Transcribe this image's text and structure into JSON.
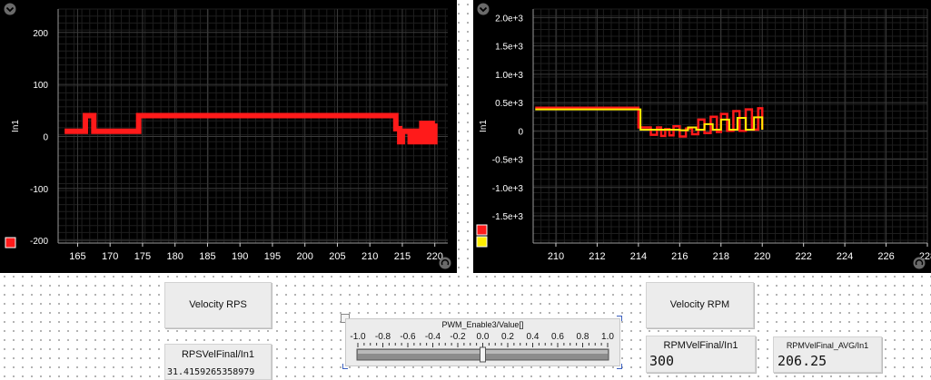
{
  "colors": {
    "chart_bg": "#000000",
    "grid": "#3a3a3a",
    "axis_text": "#ffffff",
    "series_red": "#ff1a1a",
    "series_yellow": "#ffee00",
    "series_orange": "#ff8800",
    "corner_icon": "#6a6a6a"
  },
  "chart1": {
    "ylabel": "In1",
    "menu_icon": "chevron-down-icon",
    "legend_colors": [
      "#ff1a1a"
    ]
  },
  "chart2": {
    "ylabel": "In1",
    "menu_icon": "chevron-down-icon",
    "legend_colors": [
      "#ff1a1a",
      "#ffee00"
    ]
  },
  "buttons": {
    "velocity_rps": "Velocity RPS",
    "velocity_rpm": "Velocity RPM"
  },
  "indicators": {
    "rps": {
      "label": "RPSVelFinal/In1",
      "value": "31.4159265358979"
    },
    "rpm": {
      "label": "RPMVelFinal/In1",
      "value": "300"
    },
    "rpm_avg": {
      "label": "RPMVelFinal_AVG/In1",
      "value": "206.25"
    }
  },
  "slider": {
    "title": "PWM_Enable3/Value[]",
    "min": -1.0,
    "max": 1.0,
    "value": 0.0,
    "tick_labels": [
      "-1.0",
      "-0.8",
      "-0.6",
      "-0.4",
      "-0.2",
      "0.0",
      "0.2",
      "0.4",
      "0.6",
      "0.8",
      "1.0"
    ]
  },
  "chart_data": [
    {
      "type": "line",
      "ylabel": "In1",
      "xlim": [
        162,
        222
      ],
      "ylim": [
        -205,
        245
      ],
      "xticks": [
        "165",
        "170",
        "175",
        "180",
        "185",
        "190",
        "195",
        "200",
        "205",
        "210",
        "215",
        "220"
      ],
      "xtick_values": [
        165,
        170,
        175,
        180,
        185,
        190,
        195,
        200,
        205,
        210,
        215,
        220
      ],
      "yticks": [
        "200",
        "100",
        "0",
        "-100",
        "-200"
      ],
      "ytick_values": [
        200,
        100,
        0,
        -100,
        -200
      ],
      "grid": true,
      "series": [
        {
          "color": "#ff1a1a",
          "x": [
            163,
            166,
            166.2,
            167.3,
            167.5,
            174.2,
            174.4,
            213.6,
            214,
            214.6,
            215,
            216.2,
            216.7,
            217.3,
            218,
            218.5,
            219,
            219.6,
            220
          ],
          "y": [
            10,
            10,
            40,
            40,
            10,
            10,
            40,
            40,
            15,
            -10,
            10,
            -10,
            10,
            -10,
            25,
            -10,
            25,
            -10,
            25
          ]
        }
      ]
    },
    {
      "type": "line",
      "ylabel": "In1",
      "xlim": [
        208.9,
        228
      ],
      "ylim": [
        -1980,
        2150
      ],
      "xticks": [
        "210",
        "212",
        "214",
        "216",
        "218",
        "220",
        "222",
        "224",
        "226",
        "228"
      ],
      "xtick_values": [
        210,
        212,
        214,
        216,
        218,
        220,
        222,
        224,
        226,
        228
      ],
      "yticks": [
        "2.0e+3",
        "1.5e+3",
        "1.0e+3",
        "0.5e+3",
        "0",
        "-0.5e+3",
        "-1.0e+3",
        "-1.5e+3"
      ],
      "ytick_values": [
        2000,
        1500,
        1000,
        500,
        0,
        -500,
        -1000,
        -1500
      ],
      "grid": true,
      "series": [
        {
          "color": "#ff1a1a",
          "x": [
            209,
            213.9,
            214,
            214.4,
            214.6,
            214.9,
            215.1,
            215.3,
            215.5,
            215.7,
            216,
            216.3,
            216.6,
            216.9,
            217.2,
            217.5,
            217.8,
            218,
            218.3,
            218.6,
            218.9,
            219.2,
            219.5,
            219.8,
            220
          ],
          "y": [
            410,
            410,
            60,
            60,
            -70,
            60,
            -90,
            30,
            -80,
            80,
            -100,
            40,
            -60,
            200,
            -40,
            250,
            -20,
            300,
            0,
            350,
            0,
            380,
            20,
            400,
            20
          ]
        },
        {
          "color": "#ffee00",
          "x": [
            209,
            213.9,
            214.1,
            214.8,
            215.5,
            216,
            216.4,
            216.8,
            217.2,
            217.6,
            218,
            218.4,
            218.8,
            219.2,
            219.6,
            220
          ],
          "y": [
            380,
            380,
            20,
            20,
            20,
            10,
            60,
            20,
            120,
            20,
            200,
            20,
            230,
            20,
            240,
            20
          ]
        }
      ]
    }
  ]
}
